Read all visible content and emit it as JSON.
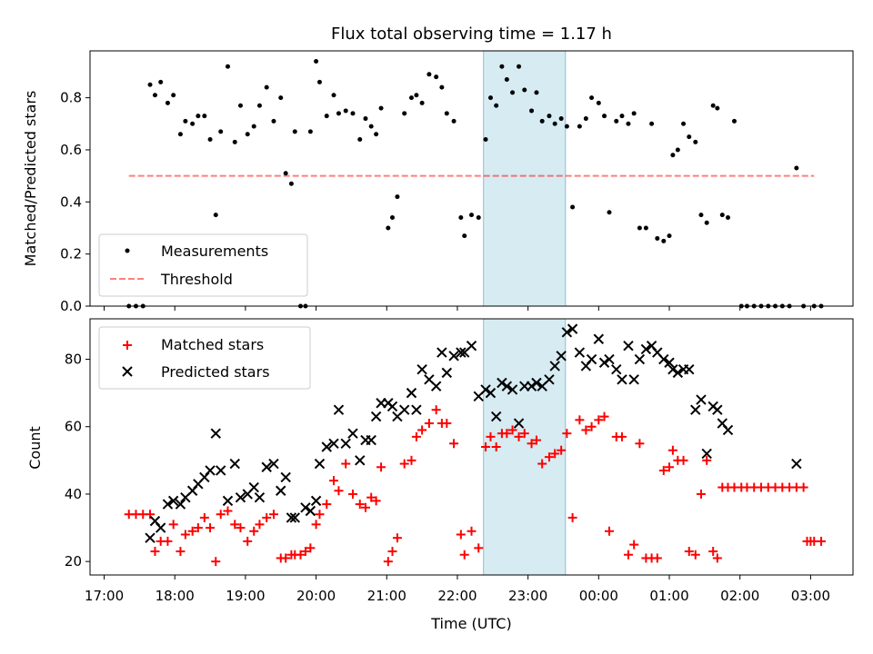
{
  "title": "Flux total observing time = 1.17 h",
  "colors": {
    "highlight": "#add8e6",
    "threshold": "#ff0000",
    "matched": "#ff0000",
    "predicted": "#000000",
    "measurement": "#000000"
  },
  "chart_data": [
    {
      "type": "scatter",
      "panel": "top",
      "ylabel": "Matched/Predicted stars",
      "xlabel": "",
      "xlim": [
        16.8,
        27.6
      ],
      "ylim": [
        0.0,
        0.98
      ],
      "yticks": [
        0.0,
        0.2,
        0.4,
        0.6,
        0.8
      ],
      "ytick_labels": [
        "0.0",
        "0.2",
        "0.4",
        "0.6",
        "0.8"
      ],
      "legend_position": "lower-left",
      "legend": [
        {
          "key": "measurements",
          "label": "Measurements"
        },
        {
          "key": "threshold",
          "label": "Threshold"
        }
      ],
      "highlight_band": [
        22.37,
        23.53
      ],
      "threshold_line": {
        "value": 0.5,
        "x_range": [
          17.35,
          27.05
        ]
      },
      "measurements": {
        "x": [
          17.35,
          17.45,
          17.55,
          17.65,
          17.72,
          17.8,
          17.9,
          17.98,
          18.08,
          18.15,
          18.25,
          18.33,
          18.42,
          18.5,
          18.58,
          18.65,
          18.75,
          18.85,
          18.93,
          19.03,
          19.12,
          19.2,
          19.3,
          19.4,
          19.5,
          19.57,
          19.65,
          19.7,
          19.78,
          19.85,
          19.92,
          20.0,
          20.05,
          20.15,
          20.25,
          20.32,
          20.42,
          20.52,
          20.62,
          20.7,
          20.78,
          20.85,
          20.92,
          21.02,
          21.08,
          21.15,
          21.25,
          21.35,
          21.42,
          21.5,
          21.6,
          21.7,
          21.78,
          21.85,
          21.95,
          22.05,
          22.1,
          22.2,
          22.3,
          22.4,
          22.47,
          22.55,
          22.63,
          22.7,
          22.78,
          22.87,
          22.95,
          23.05,
          23.12,
          23.2,
          23.3,
          23.38,
          23.47,
          23.55,
          23.63,
          23.73,
          23.82,
          23.9,
          24.0,
          24.08,
          24.15,
          24.25,
          24.33,
          24.42,
          24.5,
          24.58,
          24.67,
          24.75,
          24.83,
          24.92,
          25.0,
          25.05,
          25.12,
          25.2,
          25.28,
          25.37,
          25.45,
          25.53,
          25.62,
          25.68,
          25.75,
          25.83,
          25.92,
          26.02,
          26.1,
          26.2,
          26.3,
          26.4,
          26.5,
          26.6,
          26.7,
          26.8,
          26.9,
          27.05,
          27.15
        ],
        "y": [
          0,
          0,
          0,
          0.85,
          0.81,
          0.86,
          0.78,
          0.81,
          0.66,
          0.71,
          0.7,
          0.73,
          0.73,
          0.64,
          0.35,
          0.67,
          0.92,
          0.63,
          0.77,
          0.66,
          0.69,
          0.77,
          0.84,
          0.71,
          0.8,
          0.51,
          0.47,
          0.67,
          0,
          0,
          0.67,
          0.94,
          0.86,
          0.73,
          0.81,
          0.74,
          0.75,
          0.74,
          0.64,
          0.72,
          0.69,
          0.66,
          0.76,
          0.3,
          0.34,
          0.42,
          0.74,
          0.8,
          0.81,
          0.78,
          0.89,
          0.88,
          0.84,
          0.74,
          0.71,
          0.34,
          0.27,
          0.35,
          0.34,
          0.64,
          0.8,
          0.77,
          0.92,
          0.87,
          0.82,
          0.92,
          0.83,
          0.75,
          0.82,
          0.71,
          0.73,
          0.7,
          0.72,
          0.69,
          0.38,
          0.69,
          0.72,
          0.8,
          0.78,
          0.73,
          0.36,
          0.71,
          0.73,
          0.7,
          0.74,
          0.3,
          0.3,
          0.7,
          0.26,
          0.25,
          0.27,
          0.58,
          0.6,
          0.7,
          0.65,
          0.63,
          0.35,
          0.32,
          0.77,
          0.76,
          0.35,
          0.34,
          0.71,
          0,
          0,
          0,
          0,
          0,
          0,
          0,
          0,
          0.53,
          0,
          0,
          0
        ]
      }
    },
    {
      "type": "scatter",
      "panel": "bottom",
      "ylabel": "Count",
      "xlabel": "Time (UTC)",
      "xlim": [
        16.8,
        27.6
      ],
      "ylim": [
        16,
        92
      ],
      "yticks": [
        20,
        40,
        60,
        80
      ],
      "ytick_labels": [
        "20",
        "40",
        "60",
        "80"
      ],
      "xticks": [
        17,
        18,
        19,
        20,
        21,
        22,
        23,
        24,
        25,
        26,
        27
      ],
      "xtick_labels": [
        "17:00",
        "18:00",
        "19:00",
        "20:00",
        "21:00",
        "22:00",
        "23:00",
        "00:00",
        "01:00",
        "02:00",
        "03:00"
      ],
      "legend_position": "upper-left",
      "legend": [
        {
          "key": "matched",
          "label": "Matched stars"
        },
        {
          "key": "predicted",
          "label": "Predicted stars"
        }
      ],
      "highlight_band": [
        22.37,
        23.53
      ],
      "series": [
        {
          "name": "Matched stars",
          "marker": "plus",
          "x": [
            17.35,
            17.45,
            17.55,
            17.65,
            17.72,
            17.8,
            17.9,
            17.98,
            18.08,
            18.15,
            18.25,
            18.33,
            18.42,
            18.5,
            18.58,
            18.65,
            18.75,
            18.85,
            18.93,
            19.03,
            19.12,
            19.2,
            19.3,
            19.4,
            19.5,
            19.57,
            19.65,
            19.7,
            19.78,
            19.85,
            19.92,
            20.0,
            20.05,
            20.15,
            20.25,
            20.32,
            20.42,
            20.52,
            20.62,
            20.7,
            20.78,
            20.85,
            20.92,
            21.02,
            21.08,
            21.15,
            21.25,
            21.35,
            21.42,
            21.5,
            21.6,
            21.7,
            21.78,
            21.85,
            21.95,
            22.05,
            22.1,
            22.2,
            22.3,
            22.4,
            22.47,
            22.55,
            22.63,
            22.7,
            22.78,
            22.87,
            22.95,
            23.05,
            23.12,
            23.2,
            23.3,
            23.38,
            23.47,
            23.55,
            23.63,
            23.73,
            23.82,
            23.9,
            24.0,
            24.08,
            24.15,
            24.25,
            24.33,
            24.42,
            24.5,
            24.58,
            24.67,
            24.75,
            24.83,
            24.92,
            25.0,
            25.05,
            25.12,
            25.2,
            25.28,
            25.37,
            25.45,
            25.53,
            25.62,
            25.68,
            25.75,
            25.83,
            25.92,
            26.02,
            26.1,
            26.2,
            26.3,
            26.4,
            26.5,
            26.6,
            26.7,
            26.8,
            26.9,
            27.05,
            27.15,
            26.95,
            27.0
          ],
          "y": [
            34,
            34,
            34,
            34,
            23,
            26,
            26,
            31,
            23,
            28,
            29,
            30,
            33,
            30,
            20,
            34,
            35,
            31,
            30,
            26,
            29,
            31,
            33,
            34,
            21,
            21,
            22,
            22,
            22,
            23,
            24,
            31,
            34,
            37,
            44,
            41,
            49,
            40,
            37,
            36,
            39,
            38,
            48,
            20,
            23,
            27,
            49,
            50,
            57,
            59,
            61,
            65,
            61,
            61,
            55,
            28,
            22,
            29,
            24,
            54,
            57,
            54,
            58,
            58,
            59,
            57,
            58,
            55,
            56,
            49,
            51,
            52,
            53,
            58,
            33,
            62,
            59,
            60,
            62,
            63,
            29,
            57,
            57,
            22,
            25,
            55,
            21,
            21,
            21,
            47,
            48,
            53,
            50,
            50,
            23,
            22,
            40,
            50,
            23,
            21,
            42,
            42,
            42,
            42,
            42,
            42,
            42,
            42,
            42,
            42,
            42,
            42,
            42,
            26,
            26,
            26,
            26
          ]
        },
        {
          "name": "Predicted stars",
          "marker": "x",
          "x": [
            17.72,
            17.8,
            17.9,
            17.98,
            18.08,
            18.15,
            18.25,
            18.33,
            18.42,
            18.5,
            18.58,
            18.65,
            18.75,
            18.85,
            18.93,
            19.03,
            19.12,
            19.2,
            19.3,
            19.4,
            19.5,
            19.57,
            19.65,
            19.7,
            19.85,
            19.92,
            20.0,
            20.05,
            20.15,
            20.25,
            20.32,
            20.42,
            20.52,
            20.62,
            20.7,
            20.78,
            20.85,
            20.92,
            21.02,
            21.08,
            21.15,
            21.25,
            21.35,
            21.42,
            21.5,
            21.6,
            21.7,
            21.78,
            21.85,
            21.95,
            22.05,
            22.1,
            22.2,
            22.3,
            22.4,
            22.47,
            22.55,
            22.63,
            22.7,
            22.78,
            22.87,
            22.95,
            23.05,
            23.12,
            23.2,
            23.3,
            23.38,
            23.47,
            23.55,
            23.63,
            23.73,
            23.82,
            23.9,
            24.0,
            24.08,
            24.15,
            24.25,
            24.33,
            24.42,
            24.5,
            24.58,
            24.67,
            24.75,
            24.83,
            24.92,
            25.0,
            25.05,
            25.12,
            25.2,
            25.28,
            25.37,
            25.45,
            25.53,
            25.62,
            25.68,
            25.75,
            25.83,
            26.8,
            17.65
          ],
          "y": [
            32,
            30,
            37,
            38,
            37,
            39,
            41,
            43,
            45,
            47,
            58,
            47,
            38,
            49,
            39,
            40,
            42,
            39,
            48,
            49,
            41,
            45,
            33,
            33,
            36,
            35,
            38,
            49,
            54,
            55,
            65,
            55,
            58,
            50,
            56,
            56,
            63,
            67,
            67,
            66,
            63,
            65,
            70,
            65,
            77,
            74,
            72,
            82,
            76,
            81,
            82,
            82,
            84,
            69,
            71,
            70,
            63,
            73,
            72,
            71,
            61,
            72,
            72,
            73,
            72,
            74,
            78,
            81,
            88,
            89,
            82,
            78,
            80,
            86,
            79,
            80,
            77,
            74,
            84,
            74,
            80,
            83,
            84,
            82,
            80,
            79,
            77,
            76,
            77,
            77,
            65,
            68,
            52,
            66,
            65,
            61,
            59,
            49,
            27
          ]
        }
      ]
    }
  ]
}
